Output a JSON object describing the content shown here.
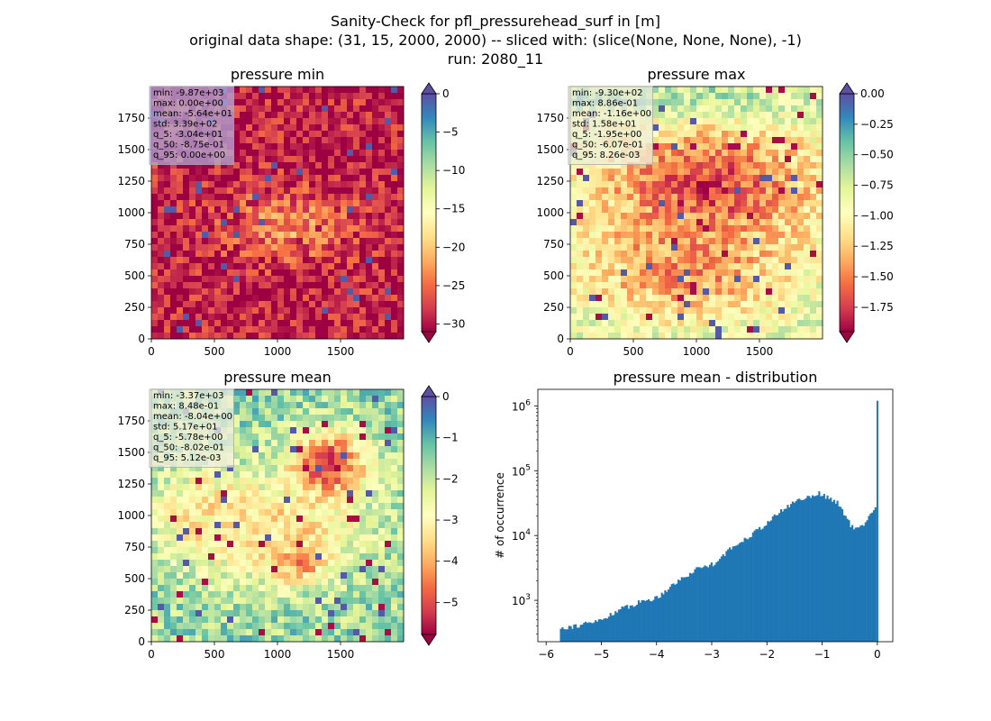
{
  "figure": {
    "title_lines": [
      "Sanity-Check for pfl_pressurehead_surf in [m]",
      "original data shape: (31, 15, 2000, 2000) -- sliced with: (slice(None, None, None), -1)",
      "run: 2080_11"
    ]
  },
  "colors": {
    "spectral": [
      "#9e0142",
      "#d53e4f",
      "#f46d43",
      "#fdae61",
      "#fee08b",
      "#ffffbf",
      "#e6f598",
      "#abdda4",
      "#66c2a5",
      "#3288bd",
      "#5e4fa2"
    ],
    "hist_bar": "#1f77b4",
    "stats_box": "#e8e8e8"
  },
  "chart_data": [
    {
      "type": "heatmap",
      "id": "pressure_min",
      "title": "pressure min",
      "xlim": [
        0,
        2000
      ],
      "ylim": [
        0,
        2000
      ],
      "xticks": [
        0,
        500,
        1000,
        1500
      ],
      "yticks": [
        0,
        250,
        500,
        750,
        1000,
        1250,
        1500,
        1750
      ],
      "colorbar": {
        "range": [
          -31,
          0
        ],
        "ticks": [
          0,
          -5,
          -10,
          -15,
          -20,
          -25,
          -30
        ],
        "tick_labels": [
          "0",
          "−5",
          "−10",
          "−15",
          "−20",
          "−25",
          "−30"
        ],
        "extend": "both"
      },
      "background_level": 0.05,
      "stats": [
        "min: -9.87e+03",
        "max: 0.00e+00",
        "mean: -5.64e+01",
        "std: 3.39e+02",
        "q_5: -3.04e+01",
        "q_50: -8.75e-01",
        "q_95: 0.00e+00"
      ],
      "stats_box_color": "#b0a8d8"
    },
    {
      "type": "heatmap",
      "id": "pressure_max",
      "title": "pressure max",
      "xlim": [
        0,
        2000
      ],
      "ylim": [
        0,
        2000
      ],
      "xticks": [
        0,
        500,
        1000,
        1500
      ],
      "yticks": [
        0,
        250,
        500,
        750,
        1000,
        1250,
        1500,
        1750
      ],
      "colorbar": {
        "range": [
          -1.95,
          0.0
        ],
        "ticks": [
          0.0,
          -0.25,
          -0.5,
          -0.75,
          -1.0,
          -1.25,
          -1.5,
          -1.75
        ],
        "tick_labels": [
          "0.00",
          "−0.25",
          "−0.50",
          "−0.75",
          "−1.00",
          "−1.25",
          "−1.50",
          "−1.75"
        ],
        "extend": "both"
      },
      "background_level": 0.6,
      "stats": [
        "min: -9.30e+02",
        "max: 8.86e-01",
        "mean: -1.16e+00",
        "std: 1.58e+01",
        "q_5: -1.95e+00",
        "q_50: -6.07e-01",
        "q_95: 8.26e-03"
      ],
      "stats_box_color": "#eeeed8"
    },
    {
      "type": "heatmap",
      "id": "pressure_mean",
      "title": "pressure mean",
      "xlim": [
        0,
        2000
      ],
      "ylim": [
        0,
        2000
      ],
      "xticks": [
        0,
        500,
        1000,
        1500
      ],
      "yticks": [
        0,
        250,
        500,
        750,
        1000,
        1250,
        1500,
        1750
      ],
      "colorbar": {
        "range": [
          -5.78,
          0
        ],
        "ticks": [
          0,
          -1,
          -2,
          -3,
          -4,
          -5
        ],
        "tick_labels": [
          "0",
          "−1",
          "−2",
          "−3",
          "−4",
          "−5"
        ],
        "extend": "both"
      },
      "background_level": 0.72,
      "stats": [
        "min: -3.37e+03",
        "max: 8.48e-01",
        "mean: -8.04e+00",
        "std: 5.17e+01",
        "q_5: -5.78e+00",
        "q_50: -8.02e-01",
        "q_95: 5.12e-03"
      ],
      "stats_box_color": "#eeeedd"
    },
    {
      "type": "bar",
      "id": "pressure_mean_distribution",
      "title": "pressure mean - distribution",
      "ylabel": "# of occurrence",
      "xlabel": "",
      "xlim": [
        -6.15,
        0.28
      ],
      "ylim": [
        230,
        1800000
      ],
      "yscale": "log",
      "xticks": [
        -6,
        -5,
        -4,
        -3,
        -2,
        -1,
        0
      ],
      "xtick_labels": [
        "−6",
        "−5",
        "−4",
        "−3",
        "−2",
        "−1",
        "0"
      ],
      "yticks": [
        1000,
        10000,
        100000,
        1000000
      ],
      "ytick_labels": [
        [
          "10",
          "3"
        ],
        [
          "10",
          "4"
        ],
        [
          "10",
          "5"
        ],
        [
          "10",
          "6"
        ]
      ],
      "bins": {
        "x": [
          -5.75,
          -5.5,
          -5.25,
          -5.0,
          -4.75,
          -4.5,
          -4.25,
          -4.0,
          -3.75,
          -3.5,
          -3.25,
          -3.0,
          -2.75,
          -2.5,
          -2.25,
          -2.0,
          -1.75,
          -1.5,
          -1.25,
          -1.1,
          -1.0,
          -0.85,
          -0.7,
          -0.55,
          -0.45,
          -0.35,
          -0.2,
          -0.08,
          -0.03,
          -0.01
        ],
        "counts": [
          380,
          400,
          440,
          500,
          680,
          820,
          980,
          1100,
          1700,
          2300,
          3200,
          3600,
          5500,
          8000,
          11000,
          16000,
          24000,
          34000,
          40000,
          45000,
          42000,
          36000,
          30000,
          17000,
          12500,
          13000,
          17000,
          25000,
          30000,
          1200000
        ]
      }
    }
  ]
}
